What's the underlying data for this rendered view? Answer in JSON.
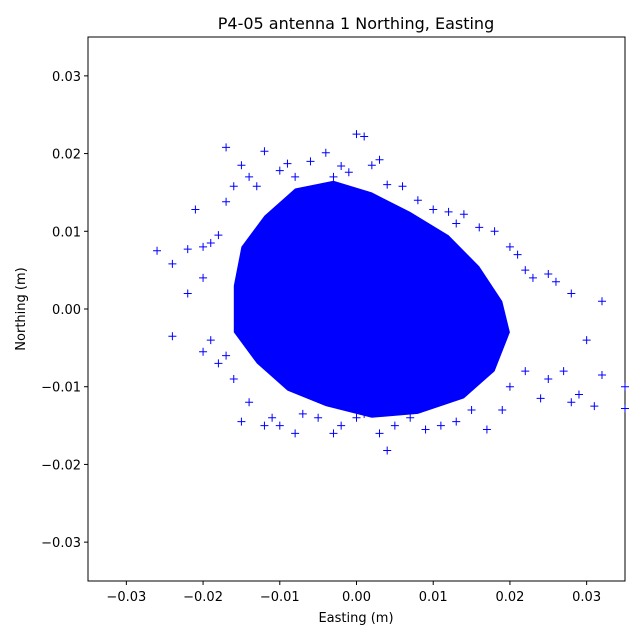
{
  "chart_data": {
    "type": "scatter",
    "title": "P4-05 antenna 1 Northing, Easting",
    "xlabel": "Easting (m)",
    "ylabel": "Northing (m)",
    "xlim": [
      -0.035,
      0.035
    ],
    "ylim": [
      -0.035,
      0.035
    ],
    "xticks": [
      -0.03,
      -0.02,
      -0.01,
      0.0,
      0.01,
      0.02,
      0.03
    ],
    "yticks": [
      -0.03,
      -0.02,
      -0.01,
      0.0,
      0.01,
      0.02,
      0.03
    ],
    "xtick_labels": [
      "−0.03",
      "−0.02",
      "−0.01",
      "0.00",
      "0.01",
      "0.02",
      "0.03"
    ],
    "ytick_labels": [
      "−0.03",
      "−0.02",
      "−0.01",
      "0.00",
      "0.01",
      "0.02",
      "0.03"
    ],
    "grid": false,
    "marker": "+",
    "color": "#0000ff",
    "series": [
      {
        "x": [
          -0.026,
          -0.024,
          -0.024,
          -0.022,
          -0.022,
          -0.021,
          -0.02,
          -0.02,
          -0.02,
          -0.019,
          -0.019,
          -0.018,
          -0.018,
          -0.017,
          -0.017,
          -0.017,
          -0.016,
          -0.016,
          -0.015,
          -0.015,
          -0.014,
          -0.014,
          -0.013,
          -0.012,
          -0.012,
          -0.011,
          -0.01,
          -0.01,
          -0.009,
          -0.008,
          -0.008,
          -0.007,
          -0.006,
          -0.005,
          -0.004,
          -0.003,
          -0.003,
          -0.002,
          -0.002,
          -0.001,
          0.0,
          0.0,
          0.001,
          0.001,
          0.002,
          0.003,
          0.003,
          0.004,
          0.004,
          0.005,
          0.006,
          0.007,
          0.008,
          0.009,
          0.01,
          0.011,
          0.012,
          0.013,
          0.013,
          0.014,
          0.015,
          0.016,
          0.017,
          0.018,
          0.019,
          0.02,
          0.02,
          0.021,
          0.022,
          0.022,
          0.023,
          0.024,
          0.025,
          0.025,
          0.026,
          0.027,
          0.028,
          0.028,
          0.029,
          0.03,
          0.031,
          0.032,
          0.032,
          0.035,
          0.035
        ],
        "y": [
          0.0075,
          0.0058,
          -0.0035,
          0.0077,
          0.002,
          0.0128,
          0.008,
          -0.0055,
          0.004,
          0.0085,
          -0.004,
          0.0095,
          -0.007,
          0.0208,
          0.0138,
          -0.006,
          0.0158,
          -0.009,
          0.0185,
          -0.0145,
          0.017,
          -0.012,
          0.0158,
          -0.015,
          0.0203,
          -0.014,
          0.0178,
          -0.015,
          0.0187,
          -0.016,
          0.017,
          -0.0135,
          0.019,
          -0.014,
          0.0201,
          0.017,
          -0.016,
          0.0184,
          -0.015,
          0.0176,
          0.0225,
          -0.014,
          0.0222,
          -0.0135,
          0.0185,
          -0.016,
          0.0192,
          -0.0182,
          0.016,
          -0.015,
          0.0158,
          -0.014,
          0.014,
          -0.0155,
          0.0128,
          -0.015,
          0.0125,
          0.011,
          -0.0145,
          0.0122,
          -0.013,
          0.0105,
          -0.0155,
          0.01,
          -0.013,
          0.008,
          -0.01,
          0.007,
          0.005,
          -0.008,
          0.004,
          -0.0115,
          0.0045,
          -0.009,
          0.0035,
          -0.008,
          0.002,
          -0.012,
          -0.011,
          -0.004,
          -0.0125,
          -0.0085,
          0.001,
          -0.01,
          -0.0128
        ]
      }
    ]
  }
}
